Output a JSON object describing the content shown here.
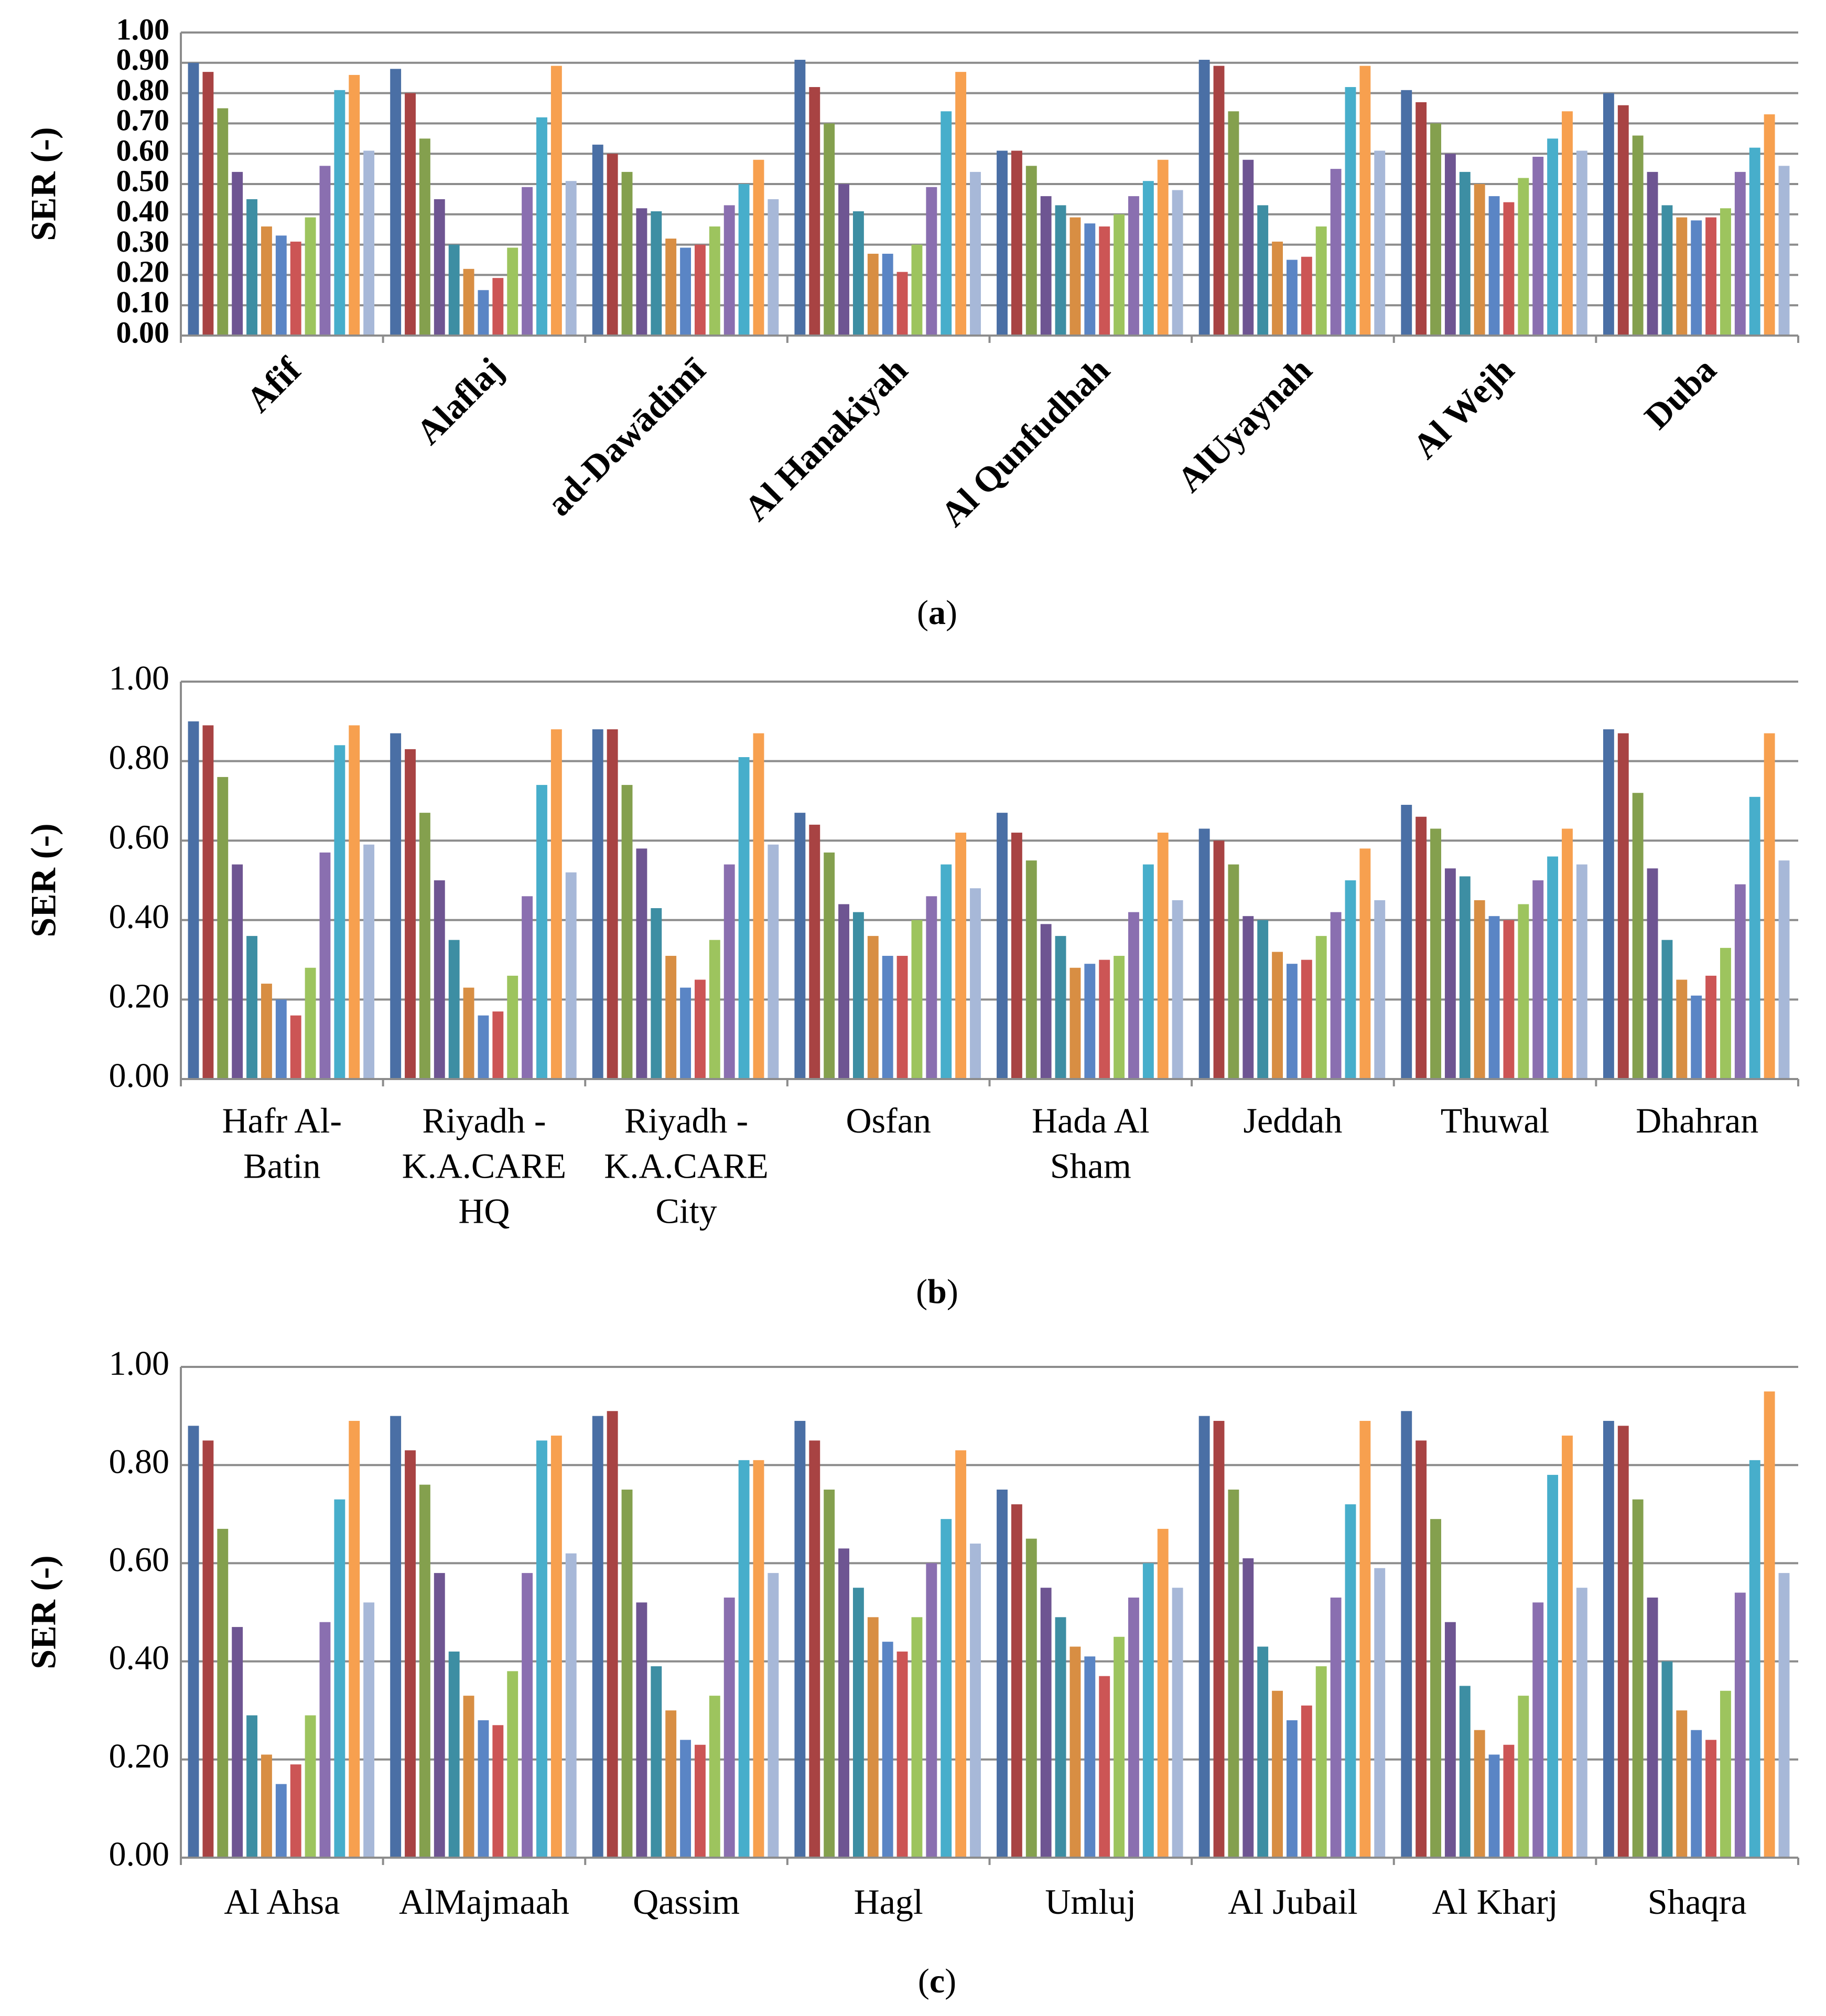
{
  "colors": [
    "#4A6FA5",
    "#A84343",
    "#84A04E",
    "#6E5592",
    "#3D8EA3",
    "#D88E43",
    "#5A85C5",
    "#CC5555",
    "#9DC45E",
    "#8A6FB0",
    "#47AECB",
    "#F7A04F",
    "#A7B8D8"
  ],
  "chart_data": [
    {
      "panel": "a",
      "type": "bar",
      "caption": "(a)",
      "ylabel": "SER (-)",
      "ylim": [
        0,
        1
      ],
      "yticks": [
        "0.00",
        "0.10",
        "0.20",
        "0.30",
        "0.40",
        "0.50",
        "0.60",
        "0.70",
        "0.80",
        "0.90",
        "1.00"
      ],
      "grid": true,
      "categories": [
        "Afif",
        "Alaflaj",
        "ad-Dawādimī",
        "Al Hanakiyah",
        "Al Qunfudhah",
        "AlUyaynah",
        "Al Wejh",
        "Duba"
      ],
      "values": [
        [
          0.9,
          0.87,
          0.75,
          0.54,
          0.45,
          0.36,
          0.33,
          0.31,
          0.39,
          0.56,
          0.81,
          0.86,
          0.61
        ],
        [
          0.88,
          0.8,
          0.65,
          0.45,
          0.3,
          0.22,
          0.15,
          0.19,
          0.29,
          0.49,
          0.72,
          0.89,
          0.51
        ],
        [
          0.63,
          0.6,
          0.54,
          0.42,
          0.41,
          0.32,
          0.29,
          0.3,
          0.36,
          0.43,
          0.5,
          0.58,
          0.45
        ],
        [
          0.91,
          0.82,
          0.7,
          0.5,
          0.41,
          0.27,
          0.27,
          0.21,
          0.3,
          0.49,
          0.74,
          0.87,
          0.54
        ],
        [
          0.61,
          0.61,
          0.56,
          0.46,
          0.43,
          0.39,
          0.37,
          0.36,
          0.4,
          0.46,
          0.51,
          0.58,
          0.48
        ],
        [
          0.91,
          0.89,
          0.74,
          0.58,
          0.43,
          0.31,
          0.25,
          0.26,
          0.36,
          0.55,
          0.82,
          0.89,
          0.61
        ],
        [
          0.81,
          0.77,
          0.7,
          0.6,
          0.54,
          0.5,
          0.46,
          0.44,
          0.52,
          0.59,
          0.65,
          0.74,
          0.61
        ],
        [
          0.8,
          0.76,
          0.66,
          0.54,
          0.43,
          0.39,
          0.38,
          0.39,
          0.42,
          0.54,
          0.62,
          0.73,
          0.56
        ]
      ]
    },
    {
      "panel": "b",
      "type": "bar",
      "caption": "(b)",
      "ylabel": "SER (-)",
      "ylim": [
        0,
        1
      ],
      "yticks": [
        "0.00",
        "0.20",
        "0.40",
        "0.60",
        "0.80",
        "1.00"
      ],
      "grid": true,
      "categories": [
        "Hafr Al-\nBatin",
        "Riyadh -\nK.A.CARE\nHQ",
        "Riyadh -\nK.A.CARE\nCity",
        "Osfan",
        "Hada Al\nSham",
        "Jeddah",
        "Thuwal",
        "Dhahran"
      ],
      "values": [
        [
          0.9,
          0.89,
          0.76,
          0.54,
          0.36,
          0.24,
          0.2,
          0.16,
          0.28,
          0.57,
          0.84,
          0.89,
          0.59
        ],
        [
          0.87,
          0.83,
          0.67,
          0.5,
          0.35,
          0.23,
          0.16,
          0.17,
          0.26,
          0.46,
          0.74,
          0.88,
          0.52
        ],
        [
          0.88,
          0.88,
          0.74,
          0.58,
          0.43,
          0.31,
          0.23,
          0.25,
          0.35,
          0.54,
          0.81,
          0.87,
          0.59
        ],
        [
          0.67,
          0.64,
          0.57,
          0.44,
          0.42,
          0.36,
          0.31,
          0.31,
          0.4,
          0.46,
          0.54,
          0.62,
          0.48
        ],
        [
          0.67,
          0.62,
          0.55,
          0.39,
          0.36,
          0.28,
          0.29,
          0.3,
          0.31,
          0.42,
          0.54,
          0.62,
          0.45
        ],
        [
          0.63,
          0.6,
          0.54,
          0.41,
          0.4,
          0.32,
          0.29,
          0.3,
          0.36,
          0.42,
          0.5,
          0.58,
          0.45
        ],
        [
          0.69,
          0.66,
          0.63,
          0.53,
          0.51,
          0.45,
          0.41,
          0.4,
          0.44,
          0.5,
          0.56,
          0.63,
          0.54
        ],
        [
          0.88,
          0.87,
          0.72,
          0.53,
          0.35,
          0.25,
          0.21,
          0.26,
          0.33,
          0.49,
          0.71,
          0.87,
          0.55
        ]
      ]
    },
    {
      "panel": "c",
      "type": "bar",
      "caption": "(c)",
      "ylabel": "SER (-)",
      "ylim": [
        0,
        1
      ],
      "yticks": [
        "0.00",
        "0.20",
        "0.40",
        "0.60",
        "0.80",
        "1.00"
      ],
      "grid": true,
      "categories": [
        "Al Ahsa",
        "AlMajmaah",
        "Qassim",
        "Hagl",
        "Umluj",
        "Al Jubail",
        "Al Kharj",
        "Shaqra"
      ],
      "values": [
        [
          0.88,
          0.85,
          0.67,
          0.47,
          0.29,
          0.21,
          0.15,
          0.19,
          0.29,
          0.48,
          0.73,
          0.89,
          0.52
        ],
        [
          0.9,
          0.83,
          0.76,
          0.58,
          0.42,
          0.33,
          0.28,
          0.27,
          0.38,
          0.58,
          0.85,
          0.86,
          0.62
        ],
        [
          0.9,
          0.91,
          0.75,
          0.52,
          0.39,
          0.3,
          0.24,
          0.23,
          0.33,
          0.53,
          0.81,
          0.81,
          0.58
        ],
        [
          0.89,
          0.85,
          0.75,
          0.63,
          0.55,
          0.49,
          0.44,
          0.42,
          0.49,
          0.6,
          0.69,
          0.83,
          0.64
        ],
        [
          0.75,
          0.72,
          0.65,
          0.55,
          0.49,
          0.43,
          0.41,
          0.37,
          0.45,
          0.53,
          0.6,
          0.67,
          0.55
        ],
        [
          0.9,
          0.89,
          0.75,
          0.61,
          0.43,
          0.34,
          0.28,
          0.31,
          0.39,
          0.53,
          0.72,
          0.89,
          0.59
        ],
        [
          0.91,
          0.85,
          0.69,
          0.48,
          0.35,
          0.26,
          0.21,
          0.23,
          0.33,
          0.52,
          0.78,
          0.86,
          0.55
        ],
        [
          0.89,
          0.88,
          0.73,
          0.53,
          0.4,
          0.3,
          0.26,
          0.24,
          0.34,
          0.54,
          0.81,
          0.95,
          0.58
        ]
      ]
    }
  ]
}
